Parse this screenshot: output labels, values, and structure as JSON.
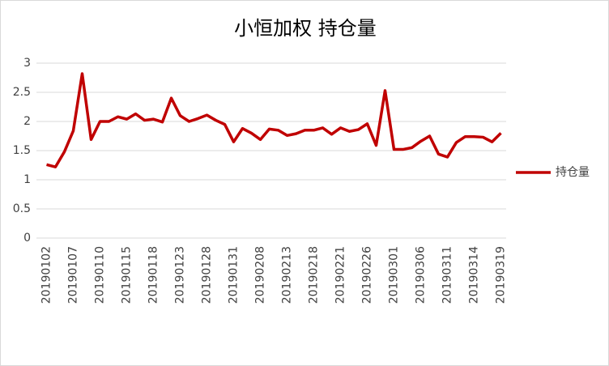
{
  "chart_data": {
    "type": "line",
    "title": "小恒加权 持仓量",
    "categories": [
      "20190102",
      null,
      null,
      "20190107",
      null,
      null,
      "20190110",
      null,
      null,
      "20190115",
      null,
      null,
      "20190118",
      null,
      null,
      "20190123",
      null,
      null,
      "20190128",
      null,
      null,
      "20190131",
      null,
      null,
      "20190208",
      null,
      null,
      "20190213",
      null,
      null,
      "20190218",
      null,
      null,
      "20190221",
      null,
      null,
      "20190226",
      null,
      null,
      "20190301",
      null,
      null,
      "20190306",
      null,
      null,
      "20190311",
      null,
      null,
      "20190314",
      null,
      null,
      "20190319"
    ],
    "series": [
      {
        "name": "持仓量",
        "color": "#c00000",
        "values": [
          1.26,
          1.22,
          1.48,
          1.84,
          2.82,
          1.69,
          2.0,
          2.0,
          2.08,
          2.04,
          2.13,
          2.02,
          2.04,
          1.99,
          2.4,
          2.1,
          2.0,
          2.05,
          2.11,
          2.02,
          1.95,
          1.65,
          1.88,
          1.8,
          1.69,
          1.87,
          1.85,
          1.76,
          1.79,
          1.85,
          1.85,
          1.89,
          1.78,
          1.89,
          1.83,
          1.86,
          1.96,
          1.59,
          2.53,
          1.52,
          1.52,
          1.55,
          1.66,
          1.75,
          1.44,
          1.39,
          1.64,
          1.74,
          1.74,
          1.73,
          1.65,
          1.8
        ]
      }
    ],
    "ylim": [
      0,
      3
    ],
    "yticks": [
      0,
      0.5,
      1,
      1.5,
      2,
      2.5,
      3
    ],
    "grid": true,
    "legend": "right"
  }
}
